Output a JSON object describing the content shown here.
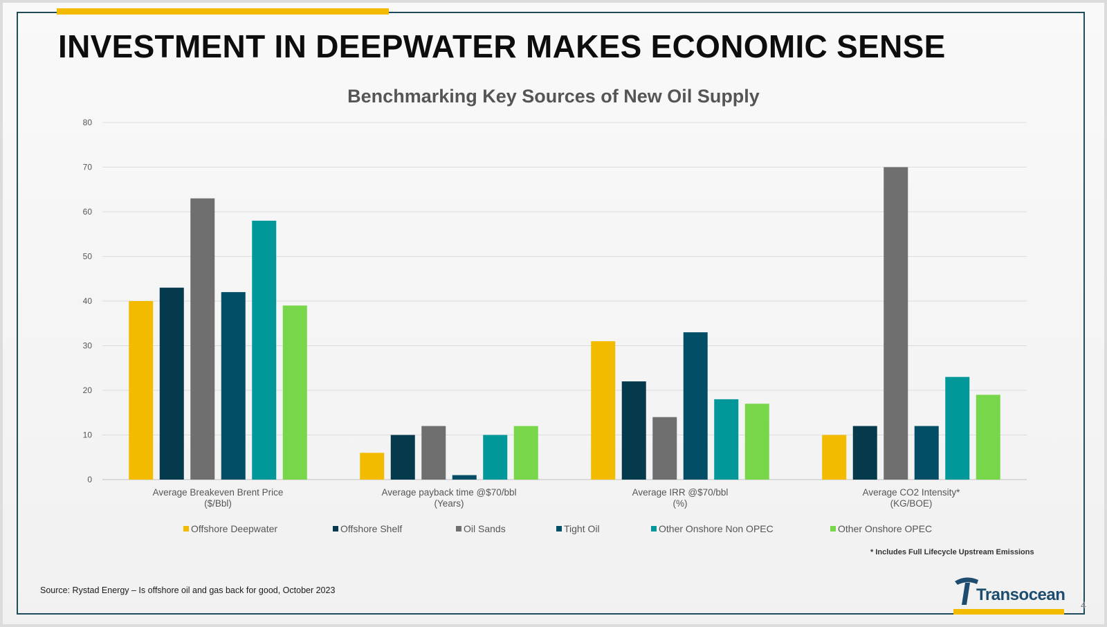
{
  "slide": {
    "title": "INVESTMENT IN DEEPWATER MAKES ECONOMIC SENSE",
    "footnote": "* Includes Full Lifecycle Upstream Emissions",
    "source": "Source: Rystad Energy – Is offshore oil and gas back for good, October 2023",
    "logo_text": "Transocean",
    "page_number": "4"
  },
  "colors": {
    "accent": "#f3bb00",
    "frame": "#1e4c5a"
  },
  "chart_data": {
    "type": "bar",
    "title": "Benchmarking Key Sources of New Oil Supply",
    "categories": [
      [
        "Average Breakeven Brent Price",
        "($/Bbl)"
      ],
      [
        "Average payback time @$70/bbl",
        "(Years)"
      ],
      [
        "Average IRR @$70/bbl",
        "(%)"
      ],
      [
        "Average CO2 Intensity*",
        "(KG/BOE)"
      ]
    ],
    "ylim": [
      0,
      80
    ],
    "yticks": [
      0,
      10,
      20,
      30,
      40,
      50,
      60,
      70,
      80
    ],
    "grid": true,
    "legend_position": "bottom",
    "series": [
      {
        "name": "Offshore Deepwater",
        "color": "#f3bb00",
        "values": [
          40,
          6,
          31,
          10
        ]
      },
      {
        "name": "Offshore Shelf",
        "color": "#043a4c",
        "values": [
          43,
          10,
          22,
          12
        ]
      },
      {
        "name": "Oil Sands",
        "color": "#6f6f6f",
        "values": [
          63,
          12,
          14,
          70
        ]
      },
      {
        "name": "Tight Oil",
        "color": "#024e66",
        "values": [
          42,
          1,
          33,
          12
        ]
      },
      {
        "name": "Other Onshore Non OPEC",
        "color": "#029899",
        "values": [
          58,
          10,
          18,
          23
        ]
      },
      {
        "name": "Other Onshore OPEC",
        "color": "#78d64b",
        "values": [
          39,
          12,
          17,
          19
        ]
      }
    ]
  }
}
